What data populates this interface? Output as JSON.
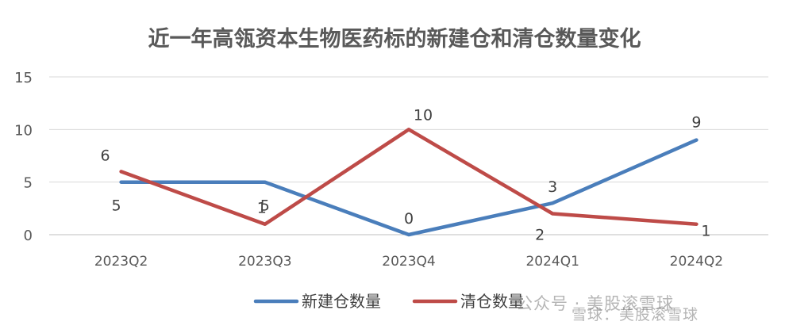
{
  "chart_data": {
    "type": "line",
    "title": "近一年高瓴资本生物医药标的新建仓和清仓数量变化",
    "categories": [
      "2023Q2",
      "2023Q3",
      "2023Q4",
      "2024Q1",
      "2024Q2"
    ],
    "series": [
      {
        "name": "新建仓数量",
        "values": [
          5,
          5,
          0,
          3,
          9
        ],
        "color": "#4a7ebb"
      },
      {
        "name": "清仓数量",
        "values": [
          6,
          1,
          10,
          2,
          1
        ],
        "color": "#be4b48"
      }
    ],
    "ylim": [
      0,
      15
    ],
    "yticks": [
      0,
      5,
      10,
      15
    ],
    "grid": true,
    "legend": "bottom"
  },
  "watermark": {
    "left": "公众号 · 美股滚雪球",
    "right": "雪球：美股滚雪球"
  }
}
